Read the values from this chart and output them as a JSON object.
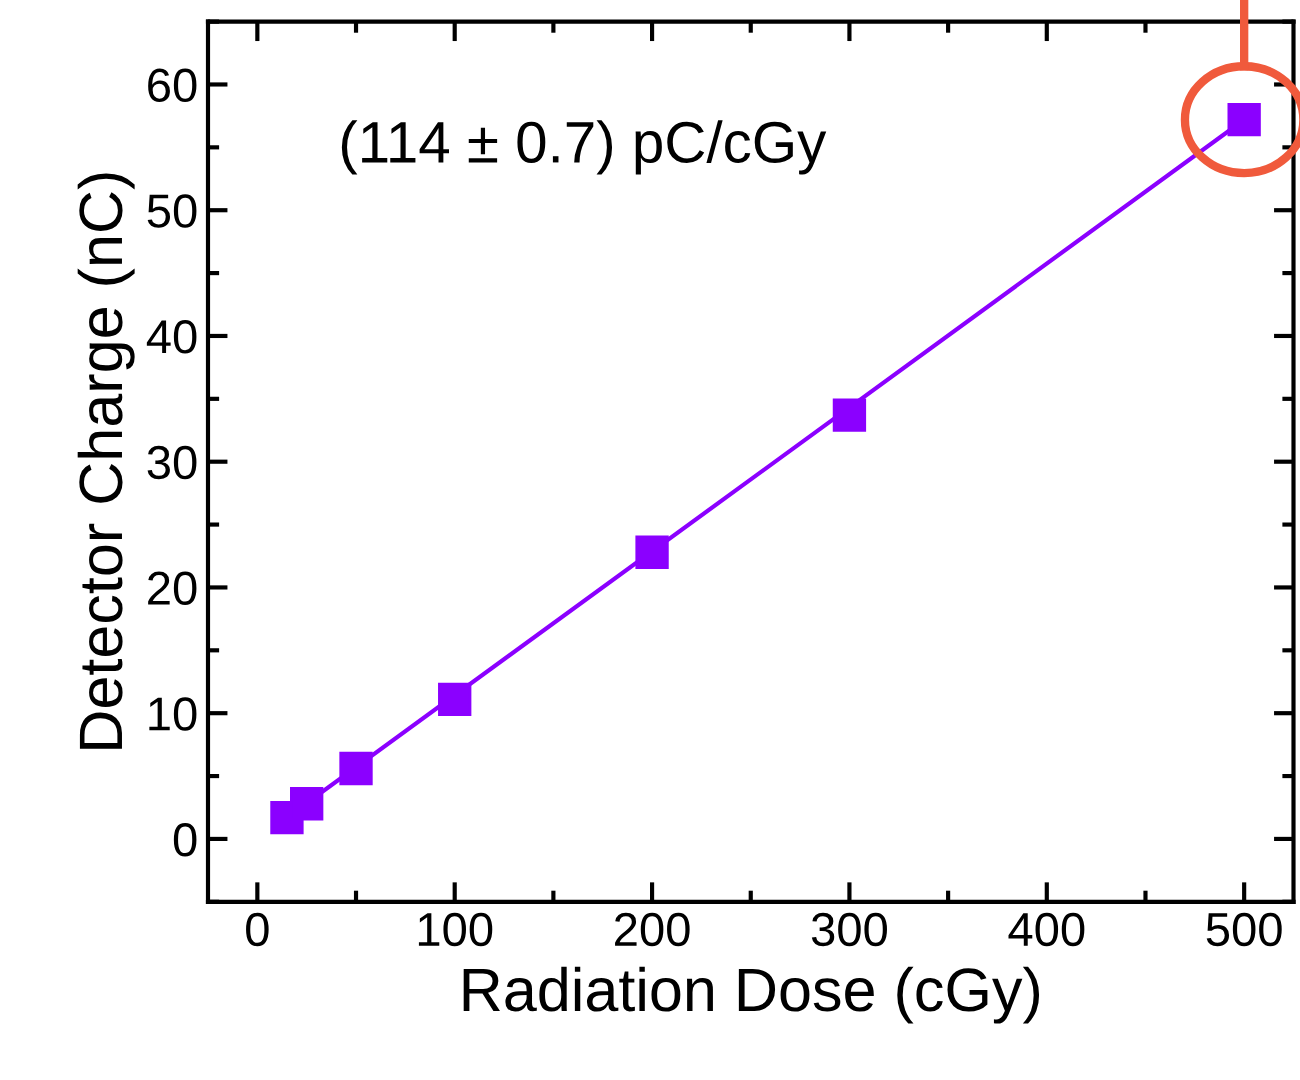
{
  "chart_data": {
    "type": "scatter",
    "xlabel": "Radiation Dose (cGy)",
    "ylabel": "Detector Charge (nC)",
    "x": [
      15,
      25,
      50,
      100,
      200,
      300,
      500
    ],
    "series": [
      {
        "marker": "square",
        "color": "#8b00ff",
        "values": [
          1.7,
          2.8,
          5.6,
          11.1,
          22.8,
          33.7,
          57.2
        ]
      },
      {
        "type": "line",
        "color": "#8b00ff",
        "x": [
          15,
          500
        ],
        "values": [
          1.7,
          57.2
        ]
      }
    ],
    "xlim": [
      -25,
      525
    ],
    "ylim": [
      -5,
      65
    ],
    "xticks": [
      0,
      100,
      200,
      300,
      400,
      500
    ],
    "yticks": [
      0,
      10,
      20,
      30,
      40,
      50,
      60
    ],
    "grid": false,
    "annotations": [
      "(114 ± 0.7) pC/cGy"
    ]
  }
}
